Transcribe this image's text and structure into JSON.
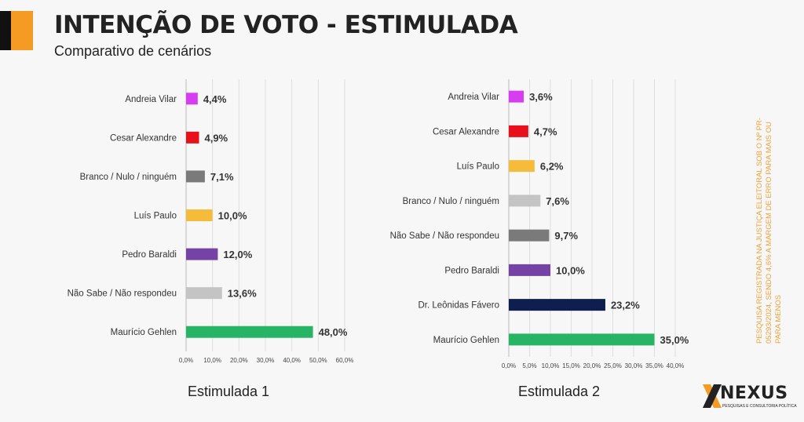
{
  "header": {
    "title": "INTENÇÃO DE VOTO - ESTIMULADA",
    "subtitle": "Comparativo de cenários"
  },
  "side_note": "PESQUISA REGISTRADA NA JUSTIÇA ELEITORAL SOB O Nº PR-05293/2024, SENDO 4,6% A MARGEM DE ERRO PARA MAIS OU PARA MENOS",
  "logo": {
    "name": "NEXUS",
    "tagline": "PESQUISAS E CONSULTORIA POLÍTICA"
  },
  "chart_data": [
    {
      "type": "bar",
      "orientation": "horizontal",
      "title": "Estimulada 1",
      "categories": [
        "Andreia Vilar",
        "Cesar Alexandre",
        "Branco / Nulo / ninguém",
        "Luís Paulo",
        "Pedro Baraldi",
        "Não Sabe / Não respondeu",
        "Maurício Gehlen"
      ],
      "values": [
        4.4,
        4.9,
        7.1,
        10.0,
        12.0,
        13.6,
        48.0
      ],
      "value_labels": [
        "4,4%",
        "4,9%",
        "7,1%",
        "10,0%",
        "12,0%",
        "13,6%",
        "48,0%"
      ],
      "colors": [
        "#d63cf0",
        "#e8111b",
        "#7a7a7a",
        "#f5bc3c",
        "#7542a6",
        "#c4c4c4",
        "#27b565"
      ],
      "xlim": [
        0,
        60
      ],
      "xticks": [
        0,
        10,
        20,
        30,
        40,
        50,
        60
      ],
      "xtick_labels": [
        "0,0%",
        "10,0%",
        "20,0%",
        "30,0%",
        "40,0%",
        "50,0%",
        "60,0%"
      ],
      "grid": true
    },
    {
      "type": "bar",
      "orientation": "horizontal",
      "title": "Estimulada 2",
      "categories": [
        "Andreia Vilar",
        "Cesar Alexandre",
        "Luís Paulo",
        "Branco / Nulo / ninguém",
        "Não Sabe / Não respondeu",
        "Pedro Baraldi",
        "Dr. Leônidas Fávero",
        "Maurício Gehlen"
      ],
      "values": [
        3.6,
        4.7,
        6.2,
        7.6,
        9.7,
        10.0,
        23.2,
        35.0
      ],
      "value_labels": [
        "3,6%",
        "4,7%",
        "6,2%",
        "7,6%",
        "9,7%",
        "10,0%",
        "23,2%",
        "35,0%"
      ],
      "colors": [
        "#d63cf0",
        "#e8111b",
        "#f5bc3c",
        "#c4c4c4",
        "#7a7a7a",
        "#7542a6",
        "#0e1f4f",
        "#27b565"
      ],
      "xlim": [
        0,
        40
      ],
      "xticks": [
        0,
        5,
        10,
        15,
        20,
        25,
        30,
        35,
        40
      ],
      "xtick_labels": [
        "0,0%",
        "5,0%",
        "10,0%",
        "15,0%",
        "20,0%",
        "25,0%",
        "30,0%",
        "35,0%",
        "40,0%"
      ],
      "grid": true
    }
  ]
}
